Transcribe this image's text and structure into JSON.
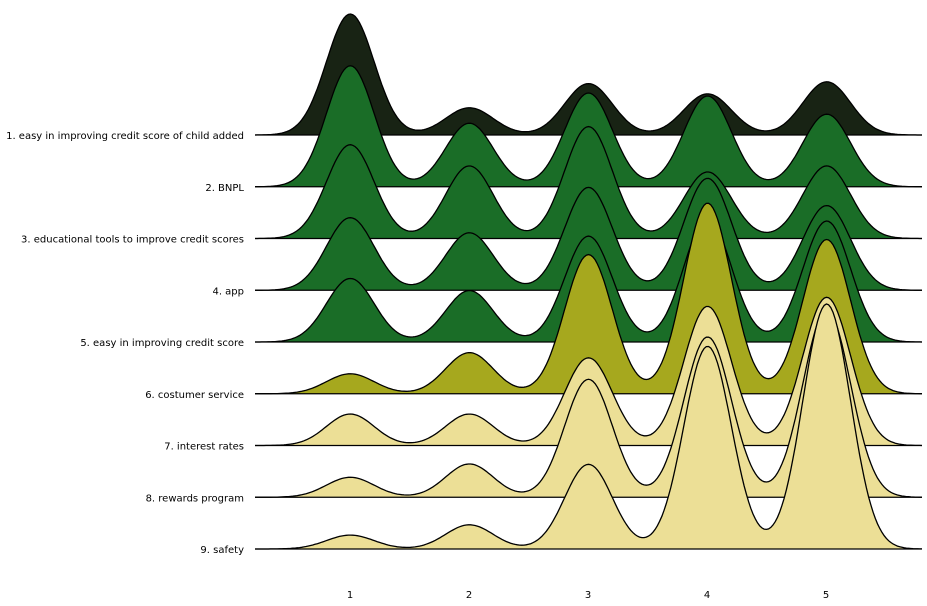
{
  "chart_data": {
    "type": "ridgeline",
    "title": "",
    "xlabel": "",
    "ylabel": "",
    "x_ticks": [
      1,
      2,
      3,
      4,
      5
    ],
    "xlim": [
      0.2,
      5.8
    ],
    "grid": false,
    "legend": "none",
    "series": [
      {
        "name": "1. easy in improving credit score of child added",
        "color": "#182314",
        "values": [
          2.0,
          0.45,
          0.85,
          0.68,
          0.88
        ]
      },
      {
        "name": "2. BNPL",
        "color": "#1a6d27",
        "values": [
          2.0,
          1.05,
          1.55,
          1.5,
          1.2
        ]
      },
      {
        "name": "3. educational tools to improve credit scores",
        "color": "#1a6d27",
        "values": [
          1.55,
          1.2,
          1.85,
          1.1,
          1.2
        ]
      },
      {
        "name": "4. app",
        "color": "#1a6d27",
        "values": [
          1.2,
          0.95,
          1.7,
          1.85,
          1.4
        ]
      },
      {
        "name": "5. easy in improving credit score",
        "color": "#1a6d27",
        "values": [
          1.05,
          0.85,
          1.75,
          2.05,
          2.0
        ]
      },
      {
        "name": "6. costumer service",
        "color": "#a6a81e",
        "values": [
          0.33,
          0.68,
          2.3,
          3.15,
          2.55
        ]
      },
      {
        "name": "7. interest rates",
        "color": "#ecdf96",
        "values": [
          0.52,
          0.52,
          1.45,
          2.3,
          2.45
        ]
      },
      {
        "name": "8. rewards program",
        "color": "#ecdf96",
        "values": [
          0.33,
          0.55,
          1.95,
          2.65,
          3.1
        ]
      },
      {
        "name": "9. safety",
        "color": "#ecdf96",
        "values": [
          0.23,
          0.4,
          1.4,
          3.35,
          4.05
        ]
      }
    ]
  }
}
